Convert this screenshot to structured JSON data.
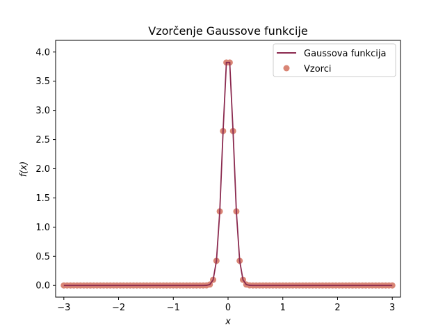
{
  "chart_data": {
    "type": "line",
    "title": "Vzorčenje Gaussove funkcije",
    "xlabel": "x",
    "ylabel": "f(x)",
    "xlim": [
      -3.15,
      3.15
    ],
    "ylim": [
      -0.2,
      4.2
    ],
    "xticks": [
      -3,
      -2,
      -1,
      0,
      1,
      2,
      3
    ],
    "xtick_labels": [
      "−3",
      "−2",
      "−1",
      "0",
      "1",
      "2",
      "3"
    ],
    "yticks": [
      0.0,
      0.5,
      1.0,
      1.5,
      2.0,
      2.5,
      3.0,
      3.5,
      4.0
    ],
    "ytick_labels": [
      "0.0",
      "0.5",
      "1.0",
      "1.5",
      "2.0",
      "2.5",
      "3.0",
      "3.5",
      "4.0"
    ],
    "grid": false,
    "legend_position": "top-right",
    "function": {
      "amplitude": 4.0,
      "sigma": 0.1
    },
    "line_x_range": [
      -3,
      3
    ],
    "sample_x_range": [
      -3,
      3
    ],
    "sample_count": 100,
    "series": [
      {
        "name": "Gaussova funkcija",
        "kind": "line",
        "color": "#8b2a4f"
      },
      {
        "name": "Vzorci",
        "kind": "scatter",
        "color": "#d98575"
      }
    ]
  }
}
